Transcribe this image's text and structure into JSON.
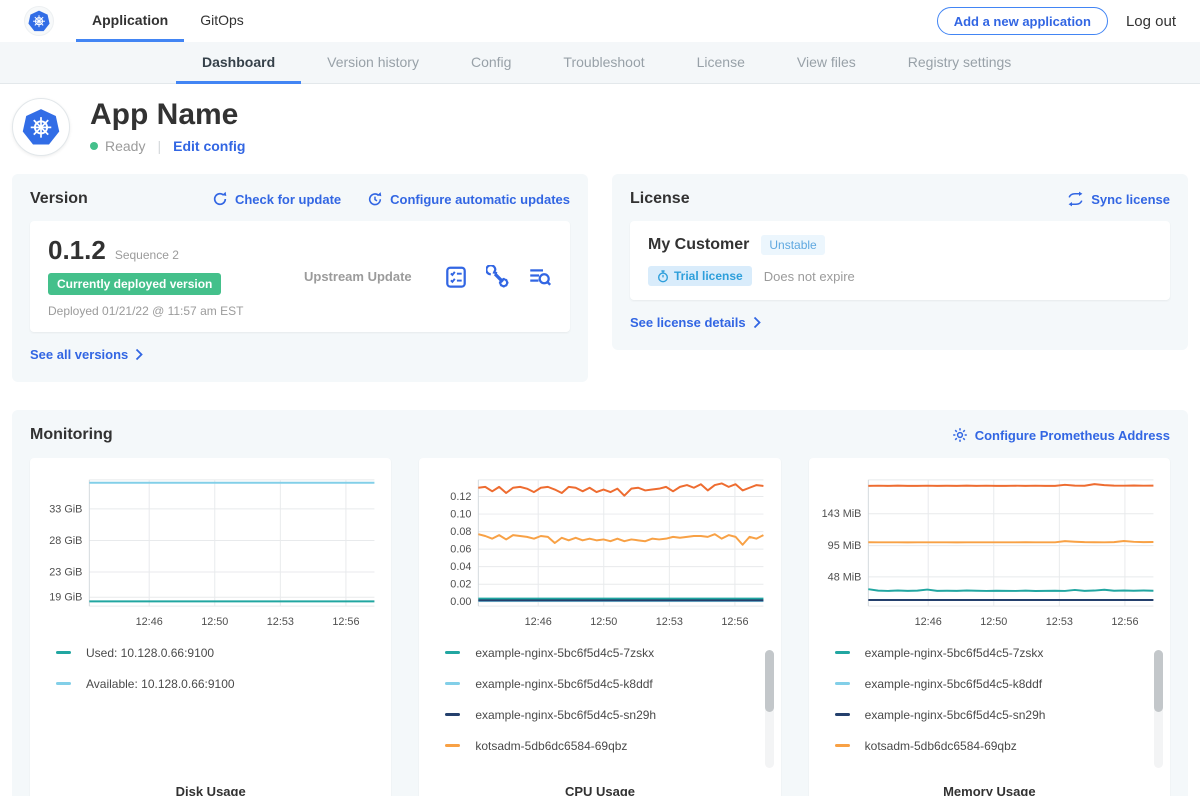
{
  "nav": {
    "tabs": [
      {
        "label": "Application"
      },
      {
        "label": "GitOps"
      }
    ],
    "active_tab": "Application",
    "add_app_button": "Add a new application",
    "logout_label": "Log out"
  },
  "subnav": {
    "tabs": [
      "Dashboard",
      "Version history",
      "Config",
      "Troubleshoot",
      "License",
      "View files",
      "Registry settings"
    ],
    "active": "Dashboard"
  },
  "app_header": {
    "title": "App Name",
    "status": "Ready",
    "edit_config_link": "Edit config"
  },
  "version_card": {
    "title": "Version",
    "check_update_link": "Check for update",
    "configure_updates_link": "Configure automatic updates",
    "version_number": "0.1.2",
    "sequence": "Sequence 2",
    "deployed_badge": "Currently deployed version",
    "deployed_at": "Deployed 01/21/22 @ 11:57 am EST",
    "source": "Upstream Update",
    "action_icons": [
      "preflight-checks-icon",
      "config-wrench-icon",
      "deploy-logs-icon"
    ],
    "see_all_link": "See all versions"
  },
  "license_card": {
    "title": "License",
    "sync_link": "Sync license",
    "customer_name": "My Customer",
    "channel_badge": "Unstable",
    "trial_badge": "Trial license",
    "expiry_text": "Does not expire",
    "details_link": "See license details"
  },
  "monitoring": {
    "title": "Monitoring",
    "configure_link": "Configure Prometheus Address"
  },
  "colors": {
    "accent_blue": "#3266e3",
    "underline_blue": "#4285f4",
    "status_green": "#44c08b",
    "series_teal": "#21a6a1",
    "series_light_blue": "#82cfe8",
    "series_navy": "#24406d",
    "series_orange": "#f8a145",
    "series_red_orange": "#ee6c30",
    "trial_badge_text": "#2e9fdb",
    "trial_badge_bg": "#d9ecfb",
    "unstable_badge_text": "#5fa8e0",
    "unstable_badge_bg": "#ecf6fd"
  },
  "chart_data": [
    {
      "type": "line",
      "title": "Disk Usage",
      "x_ticks": [
        "12:46",
        "12:50",
        "12:53",
        "12:56"
      ],
      "x_tick_pos": [
        0.21,
        0.44,
        0.67,
        0.9
      ],
      "ylim": [
        17.6,
        37.6
      ],
      "y_ticks": [
        {
          "label": "33 GiB",
          "value": 33
        },
        {
          "label": "28 GiB",
          "value": 28
        },
        {
          "label": "23 GiB",
          "value": 23
        },
        {
          "label": "19 GiB",
          "value": 19
        }
      ],
      "series": [
        {
          "name": "Available: 10.128.0.66:9100",
          "color": "#82cfe8",
          "values": [
            37.15,
            37.15
          ]
        },
        {
          "name": "Used: 10.128.0.66:9100",
          "color": "#21a6a1",
          "values": [
            18.35,
            18.35
          ]
        }
      ],
      "legend": [
        {
          "label": "Used: 10.128.0.66:9100",
          "color": "#21a6a1"
        },
        {
          "label": "Available: 10.128.0.66:9100",
          "color": "#82cfe8"
        }
      ],
      "legend_scrollbar": false
    },
    {
      "type": "line",
      "title": "CPU Usage",
      "x_ticks": [
        "12:46",
        "12:50",
        "12:53",
        "12:56"
      ],
      "x_tick_pos": [
        0.21,
        0.44,
        0.67,
        0.9
      ],
      "ylim": [
        -0.005,
        0.139
      ],
      "y_ticks": [
        {
          "label": "0.12",
          "value": 0.12
        },
        {
          "label": "0.10",
          "value": 0.1
        },
        {
          "label": "0.08",
          "value": 0.08
        },
        {
          "label": "0.06",
          "value": 0.06
        },
        {
          "label": "0.04",
          "value": 0.04
        },
        {
          "label": "0.02",
          "value": 0.02
        },
        {
          "label": "0.00",
          "value": 0.0
        }
      ],
      "series": [
        {
          "name": "example-nginx-5bc6f5d4c5-k8ddf",
          "color": "#82cfe8",
          "values": [
            0.0008,
            0.0008
          ]
        },
        {
          "name": "example-nginx-5bc6f5d4c5-7zskx",
          "color": "#21a6a1",
          "values": [
            0.0035,
            0.0035
          ]
        },
        {
          "name": "example-nginx-5bc6f5d4c5-sn29h",
          "color": "#24406d",
          "values": [
            0.0015,
            0.0015
          ]
        },
        {
          "name": "kotsadm-5db6dc6584-69qbz",
          "color": "#f8a145",
          "values": [
            0.077,
            0.075,
            0.072,
            0.076,
            0.071,
            0.076,
            0.075,
            0.074,
            0.072,
            0.075,
            0.074,
            0.067,
            0.073,
            0.07,
            0.073,
            0.07,
            0.072,
            0.07,
            0.071,
            0.069,
            0.072,
            0.069,
            0.071,
            0.07,
            0.069,
            0.072,
            0.071,
            0.072,
            0.074,
            0.073,
            0.074,
            0.075,
            0.075,
            0.074,
            0.077,
            0.072,
            0.076,
            0.074,
            0.065,
            0.074,
            0.072,
            0.076
          ]
        },
        {
          "name": "",
          "color": "#ee6c30",
          "values": [
            0.13,
            0.131,
            0.126,
            0.131,
            0.124,
            0.13,
            0.131,
            0.129,
            0.125,
            0.13,
            0.131,
            0.128,
            0.124,
            0.131,
            0.13,
            0.126,
            0.13,
            0.125,
            0.128,
            0.125,
            0.129,
            0.121,
            0.129,
            0.13,
            0.127,
            0.128,
            0.129,
            0.131,
            0.126,
            0.131,
            0.133,
            0.13,
            0.134,
            0.127,
            0.133,
            0.135,
            0.131,
            0.134,
            0.127,
            0.13,
            0.133,
            0.132
          ]
        }
      ],
      "legend": [
        {
          "label": "example-nginx-5bc6f5d4c5-7zskx",
          "color": "#21a6a1"
        },
        {
          "label": "example-nginx-5bc6f5d4c5-k8ddf",
          "color": "#82cfe8"
        },
        {
          "label": "example-nginx-5bc6f5d4c5-sn29h",
          "color": "#24406d"
        },
        {
          "label": "kotsadm-5db6dc6584-69qbz",
          "color": "#f8a145"
        }
      ],
      "legend_scrollbar": true
    },
    {
      "type": "line",
      "title": "Memory Usage",
      "x_ticks": [
        "12:46",
        "12:50",
        "12:53",
        "12:56"
      ],
      "x_tick_pos": [
        0.21,
        0.44,
        0.67,
        0.9
      ],
      "ylim": [
        4,
        194
      ],
      "y_ticks": [
        {
          "label": "143 MiB",
          "value": 143
        },
        {
          "label": "95 MiB",
          "value": 95
        },
        {
          "label": "48 MiB",
          "value": 48
        }
      ],
      "series": [
        {
          "name": "example-nginx-5bc6f5d4c5-sn29h",
          "color": "#24406d",
          "values": [
            13.2,
            13.2
          ]
        },
        {
          "name": "example-nginx-5bc6f5d4c5-7zskx",
          "color": "#21a6a1",
          "values": [
            29.5,
            27.3,
            26.9,
            27.5,
            27.0,
            27.3,
            29.0,
            27.0,
            27.2,
            27.0,
            27.5,
            27.1,
            26.9,
            27.2,
            27.0,
            26.8,
            27.3,
            26.7,
            27.0,
            27.2,
            26.8,
            28.3,
            27.0,
            27.4,
            28.7,
            27.1,
            27.4,
            27.2,
            27.5,
            27.2
          ]
        },
        {
          "name": "kotsadm-5db6dc6584-69qbz",
          "color": "#f8a145",
          "values": [
            100.2,
            100,
            100.1,
            100,
            99.9,
            100,
            100.1,
            100,
            100,
            99.9,
            100,
            100.1,
            100,
            100,
            100.1,
            100,
            100.2,
            100,
            100.1,
            100,
            101.8,
            100.9,
            100.3,
            100.2,
            100.1,
            100.4,
            101.9,
            100.8,
            100.4,
            100.5
          ]
        },
        {
          "name": "",
          "color": "#ee6c30",
          "values": [
            185,
            185.2,
            185,
            185.4,
            185,
            185,
            185.3,
            185,
            185.1,
            185,
            185.4,
            185,
            185.2,
            185,
            185,
            185.3,
            185,
            185.2,
            185,
            185,
            186.6,
            185.4,
            185.1,
            187.6,
            186.2,
            185.4,
            185.2,
            185.6,
            185.3,
            185.4
          ]
        }
      ],
      "legend": [
        {
          "label": "example-nginx-5bc6f5d4c5-7zskx",
          "color": "#21a6a1"
        },
        {
          "label": "example-nginx-5bc6f5d4c5-k8ddf",
          "color": "#82cfe8"
        },
        {
          "label": "example-nginx-5bc6f5d4c5-sn29h",
          "color": "#24406d"
        },
        {
          "label": "kotsadm-5db6dc6584-69qbz",
          "color": "#f8a145"
        }
      ],
      "legend_scrollbar": true
    }
  ]
}
